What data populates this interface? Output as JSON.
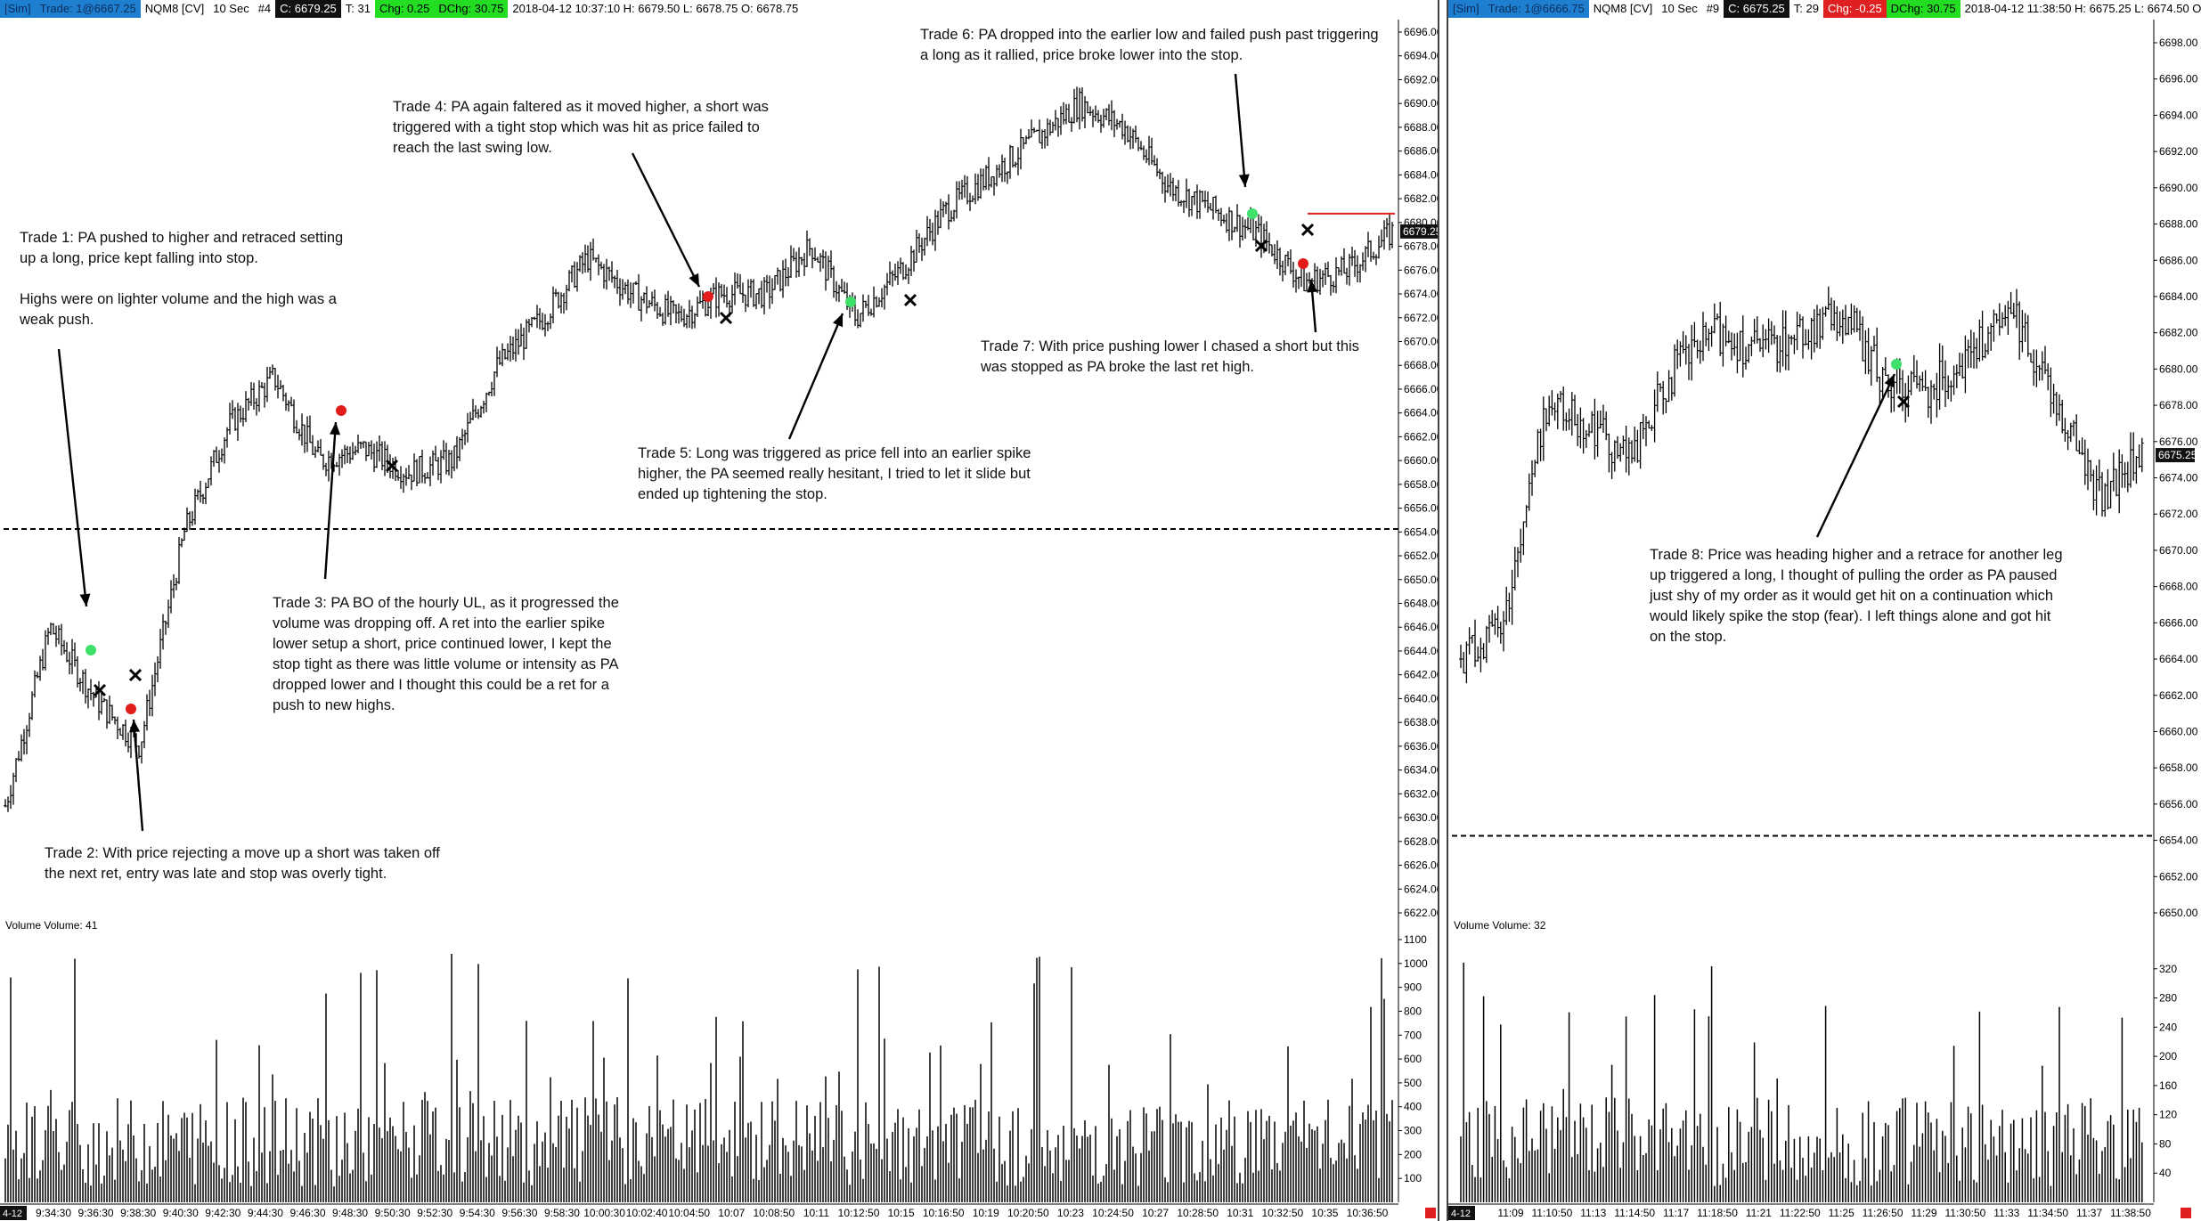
{
  "left": {
    "header": {
      "sim": "[Sim]",
      "trade": "Trade: 1@6667.25",
      "symbol": "NQM8 [CV]",
      "interval": "10 Sec",
      "bar_no": "#4",
      "close": "C: 6679.25",
      "ticks": "T: 31",
      "chg": "Chg: 0.25",
      "dchg": "DChg: 30.75",
      "ohlc": "2018-04-12 10:37:10 H: 6679.50 L: 6678.75 O: 6678.75"
    },
    "price_ticks": [
      "6696.00",
      "6694.00",
      "6692.00",
      "6690.00",
      "6688.00",
      "6686.00",
      "6684.00",
      "6682.00",
      "6680.00",
      "6678.00",
      "6676.00",
      "6674.00",
      "6672.00",
      "6670.00",
      "6668.00",
      "6666.00",
      "6664.00",
      "6662.00",
      "6660.00",
      "6658.00",
      "6656.00",
      "6654.00",
      "6652.00",
      "6650.00",
      "6648.00",
      "6646.00",
      "6644.00",
      "6642.00",
      "6640.00",
      "6638.00",
      "6636.00",
      "6634.00",
      "6632.00",
      "6630.00",
      "6628.00",
      "6626.00",
      "6624.00",
      "6622.00"
    ],
    "last_price": "6679.25",
    "volume_label": "Volume  Volume: 41",
    "volume_ticks": [
      "1100",
      "1000",
      "900",
      "800",
      "700",
      "600",
      "500",
      "400",
      "300",
      "200",
      "100"
    ],
    "time_ticks": [
      "9:34:30",
      "9:36:30",
      "9:38:30",
      "9:40:30",
      "9:42:30",
      "9:44:30",
      "9:46:30",
      "9:48:30",
      "9:50:30",
      "9:52:30",
      "9:54:30",
      "9:56:30",
      "9:58:30",
      "10:00:30",
      "10:02:40",
      "10:04:50",
      "10:07",
      "10:08:50",
      "10:11",
      "10:12:50",
      "10:15",
      "10:16:50",
      "10:19",
      "10:20:50",
      "10:23",
      "10:24:50",
      "10:27",
      "10:28:50",
      "10:31",
      "10:32:50",
      "10:35",
      "10:36:50"
    ],
    "date_tag": "4-12",
    "notes": {
      "t1": "Trade 1:  PA pushed to higher and retraced setting\nup a long, price kept falling into stop.\n\nHighs were on lighter volume and the high was a\nweak push.",
      "t2": "Trade 2:  With price rejecting a move up a short was taken off\nthe next ret, entry was late and stop was overly tight.",
      "t3": "Trade 3:  PA BO of the hourly UL, as it progressed the\nvolume was dropping off.  A ret into the earlier spike\nlower setup a short, price continued lower, I kept the\nstop tight as there was little volume or intensity as PA\ndropped lower and I thought this could be a ret for a\npush to new highs.",
      "t4": "Trade 4:  PA again faltered as it moved higher, a short was\ntriggered with a tight stop which was hit as price failed to\nreach the last swing low.",
      "t5": "Trade 5:  Long was triggered as price fell into an earlier spike\nhigher, the PA seemed really hesitant, I tried to let it slide but\nended up tightening the stop.",
      "t6": "Trade 6:  PA dropped into the earlier low and failed push past triggering\na long as it rallied, price broke lower into the stop.",
      "t7": "Trade 7:  With price pushing lower I chased a short but this\nwas stopped as PA broke the last ret high."
    }
  },
  "right": {
    "header": {
      "sim": "[Sim]",
      "trade": "Trade: 1@6666.75",
      "symbol": "NQM8 [CV]",
      "interval": "10 Sec",
      "bar_no": "#9",
      "close": "C: 6675.25",
      "ticks": "T: 29",
      "chg": "Chg: -0.25",
      "dchg": "DChg: 30.75",
      "ohlc": "2018-04-12 11:38:50 H: 6675.25 L: 6674.50 O: 6675.25"
    },
    "price_ticks": [
      "6698.00",
      "6696.00",
      "6694.00",
      "6692.00",
      "6690.00",
      "6688.00",
      "6686.00",
      "6684.00",
      "6682.00",
      "6680.00",
      "6678.00",
      "6676.00",
      "6674.00",
      "6672.00",
      "6670.00",
      "6668.00",
      "6666.00",
      "6664.00",
      "6662.00",
      "6660.00",
      "6658.00",
      "6656.00",
      "6654.00",
      "6652.00",
      "6650.00"
    ],
    "last_price": "6675.25",
    "volume_label": "Volume  Volume: 32",
    "volume_ticks": [
      "320",
      "280",
      "240",
      "200",
      "160",
      "120",
      "80",
      "40"
    ],
    "time_ticks": [
      "11:09",
      "11:10:50",
      "11:13",
      "11:14:50",
      "11:17",
      "11:18:50",
      "11:21",
      "11:22:50",
      "11:25",
      "11:26:50",
      "11:29",
      "11:30:50",
      "11:33",
      "11:34:50",
      "11:37",
      "11:38:50"
    ],
    "date_tag": "4-12",
    "notes": {
      "t8": "Trade 8:  Price was heading higher and a retrace for another leg\nup triggered a long, I thought of pulling the order as PA paused\njust shy of my order as it would get hit on a continuation which\nwould likely spike the stop (fear).  I left things alone and got hit\non the stop."
    }
  },
  "chart_data": [
    {
      "type": "bar",
      "subtype": "ohlc",
      "instrument": "NQM8 [CV]",
      "interval": "10 Sec",
      "ylim": [
        6622,
        6696
      ],
      "key_points": [
        {
          "time": "9:34:30",
          "price": 6631
        },
        {
          "time": "9:36:30",
          "price": 6646
        },
        {
          "time": "9:38:30",
          "price": 6640
        },
        {
          "time": "9:40:30",
          "price": 6636
        },
        {
          "time": "9:42:30",
          "price": 6654
        },
        {
          "time": "9:44:30",
          "price": 6663
        },
        {
          "time": "9:46:30",
          "price": 6667
        },
        {
          "time": "9:48:30",
          "price": 6660
        },
        {
          "time": "9:50:30",
          "price": 6661
        },
        {
          "time": "9:52:30",
          "price": 6659
        },
        {
          "time": "9:54:30",
          "price": 6660
        },
        {
          "time": "9:56:30",
          "price": 6668
        },
        {
          "time": "9:58:30",
          "price": 6672
        },
        {
          "time": "10:00:30",
          "price": 6677
        },
        {
          "time": "10:02:40",
          "price": 6674
        },
        {
          "time": "10:04:50",
          "price": 6672
        },
        {
          "time": "10:07",
          "price": 6674
        },
        {
          "time": "10:08:50",
          "price": 6674
        },
        {
          "time": "10:11",
          "price": 6678
        },
        {
          "time": "10:12:50",
          "price": 6672
        },
        {
          "time": "10:15",
          "price": 6676
        },
        {
          "time": "10:16:50",
          "price": 6681
        },
        {
          "time": "10:19",
          "price": 6684
        },
        {
          "time": "10:20:50",
          "price": 6687
        },
        {
          "time": "10:23",
          "price": 6690
        },
        {
          "time": "10:24:50",
          "price": 6688
        },
        {
          "time": "10:27",
          "price": 6683
        },
        {
          "time": "10:28:50",
          "price": 6681
        },
        {
          "time": "10:31",
          "price": 6679
        },
        {
          "time": "10:32:50",
          "price": 6675
        },
        {
          "time": "10:35",
          "price": 6676
        },
        {
          "time": "10:36:50",
          "price": 6679.25
        }
      ],
      "reference_lines": [
        {
          "price": 6654.25,
          "style": "dashed"
        },
        {
          "price": 6680.75,
          "style": "solid",
          "color": "#e02020",
          "from": "10:32:30"
        }
      ],
      "volume_ylim": [
        0,
        1100
      ]
    },
    {
      "type": "bar",
      "subtype": "ohlc",
      "instrument": "NQM8 [CV]",
      "interval": "10 Sec",
      "ylim": [
        6650,
        6698
      ],
      "key_points": [
        {
          "time": "11:08",
          "price": 6664
        },
        {
          "time": "11:09",
          "price": 6666
        },
        {
          "time": "11:10:50",
          "price": 6678
        },
        {
          "time": "11:13",
          "price": 6677
        },
        {
          "time": "11:14:50",
          "price": 6675
        },
        {
          "time": "11:17",
          "price": 6680
        },
        {
          "time": "11:18:50",
          "price": 6682
        },
        {
          "time": "11:21",
          "price": 6681
        },
        {
          "time": "11:22:50",
          "price": 6682
        },
        {
          "time": "11:25",
          "price": 6683
        },
        {
          "time": "11:26:50",
          "price": 6679
        },
        {
          "time": "11:29",
          "price": 6679
        },
        {
          "time": "11:30:50",
          "price": 6681
        },
        {
          "time": "11:33",
          "price": 6683
        },
        {
          "time": "11:34:50",
          "price": 6678
        },
        {
          "time": "11:37",
          "price": 6673
        },
        {
          "time": "11:38:50",
          "price": 6675.25
        }
      ],
      "reference_lines": [
        {
          "price": 6654.25,
          "style": "dashed"
        }
      ],
      "volume_ylim": [
        0,
        360
      ]
    }
  ]
}
